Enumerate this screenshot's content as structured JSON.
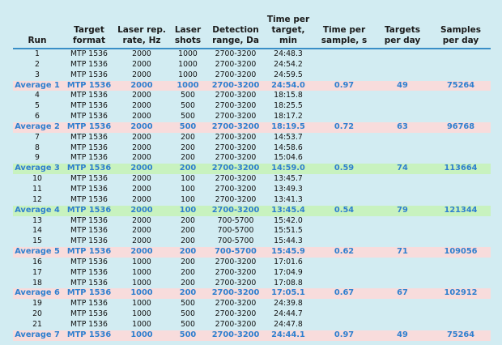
{
  "headers": [
    "Run",
    "Target\nformat",
    "Laser rep.\nrate, Hz",
    "Laser\nshots",
    "Detection\nrange, Da",
    "Time per\ntarget, min",
    "Time per\nsample, s",
    "Targets\nper day",
    "Samples\nper day"
  ],
  "rows": [
    {
      "type": "data",
      "cells": [
        "1",
        "MTP 1536",
        "2000",
        "1000",
        "2700-3200",
        "24:48.3",
        "",
        "",
        ""
      ]
    },
    {
      "type": "data",
      "cells": [
        "2",
        "MTP 1536",
        "2000",
        "1000",
        "2700-3200",
        "24:54.2",
        "",
        "",
        ""
      ]
    },
    {
      "type": "data",
      "cells": [
        "3",
        "MTP 1536",
        "2000",
        "1000",
        "2700-3200",
        "24:59.5",
        "",
        "",
        ""
      ]
    },
    {
      "type": "avg",
      "highlight": "pink",
      "cells": [
        "Average 1",
        "MTP 1536",
        "2000",
        "1000",
        "2700-3200",
        "24:54.0",
        "0.97",
        "49",
        "75264"
      ]
    },
    {
      "type": "data",
      "cells": [
        "4",
        "MTP 1536",
        "2000",
        "500",
        "2700-3200",
        "18:15.8",
        "",
        "",
        ""
      ]
    },
    {
      "type": "data",
      "cells": [
        "5",
        "MTP 1536",
        "2000",
        "500",
        "2700-3200",
        "18:25.5",
        "",
        "",
        ""
      ]
    },
    {
      "type": "data",
      "cells": [
        "6",
        "MTP 1536",
        "2000",
        "500",
        "2700-3200",
        "18:17.2",
        "",
        "",
        ""
      ]
    },
    {
      "type": "avg",
      "highlight": "pink",
      "cells": [
        "Average 2",
        "MTP 1536",
        "2000",
        "500",
        "2700-3200",
        "18:19.5",
        "0.72",
        "63",
        "96768"
      ]
    },
    {
      "type": "data",
      "cells": [
        "7",
        "MTP 1536",
        "2000",
        "200",
        "2700-3200",
        "14:53.7",
        "",
        "",
        ""
      ]
    },
    {
      "type": "data",
      "cells": [
        "8",
        "MTP 1536",
        "2000",
        "200",
        "2700-3200",
        "14:58.6",
        "",
        "",
        ""
      ]
    },
    {
      "type": "data",
      "cells": [
        "9",
        "MTP 1536",
        "2000",
        "200",
        "2700-3200",
        "15:04.6",
        "",
        "",
        ""
      ]
    },
    {
      "type": "avg",
      "highlight": "green",
      "cells": [
        "Average 3",
        "MTP 1536",
        "2000",
        "200",
        "2700-3200",
        "14:59.0",
        "0.59",
        "74",
        "113664"
      ]
    },
    {
      "type": "data",
      "cells": [
        "10",
        "MTP 1536",
        "2000",
        "100",
        "2700-3200",
        "13:45.7",
        "",
        "",
        ""
      ]
    },
    {
      "type": "data",
      "cells": [
        "11",
        "MTP 1536",
        "2000",
        "100",
        "2700-3200",
        "13:49.3",
        "",
        "",
        ""
      ]
    },
    {
      "type": "data",
      "cells": [
        "12",
        "MTP 1536",
        "2000",
        "100",
        "2700-3200",
        "13:41.3",
        "",
        "",
        ""
      ]
    },
    {
      "type": "avg",
      "highlight": "green",
      "cells": [
        "Average 4",
        "MTP 1536",
        "2000",
        "100",
        "2700-3200",
        "13:45.4",
        "0.54",
        "79",
        "121344"
      ]
    },
    {
      "type": "data",
      "cells": [
        "13",
        "MTP 1536",
        "2000",
        "200",
        "700-5700",
        "15:42.0",
        "",
        "",
        ""
      ]
    },
    {
      "type": "data",
      "cells": [
        "14",
        "MTP 1536",
        "2000",
        "200",
        "700-5700",
        "15:51.5",
        "",
        "",
        ""
      ]
    },
    {
      "type": "data",
      "cells": [
        "15",
        "MTP 1536",
        "2000",
        "200",
        "700-5700",
        "15:44.3",
        "",
        "",
        ""
      ]
    },
    {
      "type": "avg",
      "highlight": "pink",
      "cells": [
        "Average 5",
        "MTP 1536",
        "2000",
        "200",
        "700-5700",
        "15:45.9",
        "0.62",
        "71",
        "109056"
      ]
    },
    {
      "type": "data",
      "cells": [
        "16",
        "MTP 1536",
        "1000",
        "200",
        "2700-3200",
        "17:01.6",
        "",
        "",
        ""
      ]
    },
    {
      "type": "data",
      "cells": [
        "17",
        "MTP 1536",
        "1000",
        "200",
        "2700-3200",
        "17:04.9",
        "",
        "",
        ""
      ]
    },
    {
      "type": "data",
      "cells": [
        "18",
        "MTP 1536",
        "1000",
        "200",
        "2700-3200",
        "17:08.8",
        "",
        "",
        ""
      ]
    },
    {
      "type": "avg",
      "highlight": "pink",
      "cells": [
        "Average 6",
        "MTP 1536",
        "1000",
        "200",
        "2700-3200",
        "17:05.1",
        "0.67",
        "67",
        "102912"
      ]
    },
    {
      "type": "data",
      "cells": [
        "19",
        "MTP 1536",
        "1000",
        "500",
        "2700-3200",
        "24:39.8",
        "",
        "",
        ""
      ]
    },
    {
      "type": "data",
      "cells": [
        "20",
        "MTP 1536",
        "1000",
        "500",
        "2700-3200",
        "24:44.7",
        "",
        "",
        ""
      ]
    },
    {
      "type": "data",
      "cells": [
        "21",
        "MTP 1536",
        "1000",
        "500",
        "2700-3200",
        "24:47.8",
        "",
        "",
        ""
      ]
    },
    {
      "type": "avg",
      "highlight": "pink",
      "cells": [
        "Average 7",
        "MTP 1536",
        "1000",
        "500",
        "2700-3200",
        "24:44.1",
        "0.97",
        "49",
        "75264"
      ]
    }
  ],
  "colors": {
    "background": "#d2ecf2",
    "header_rule": "#3a8fc7",
    "average_text": "#2e7fcf",
    "highlight_pink": "#f8dcdc",
    "highlight_green": "#c8f2bf"
  }
}
